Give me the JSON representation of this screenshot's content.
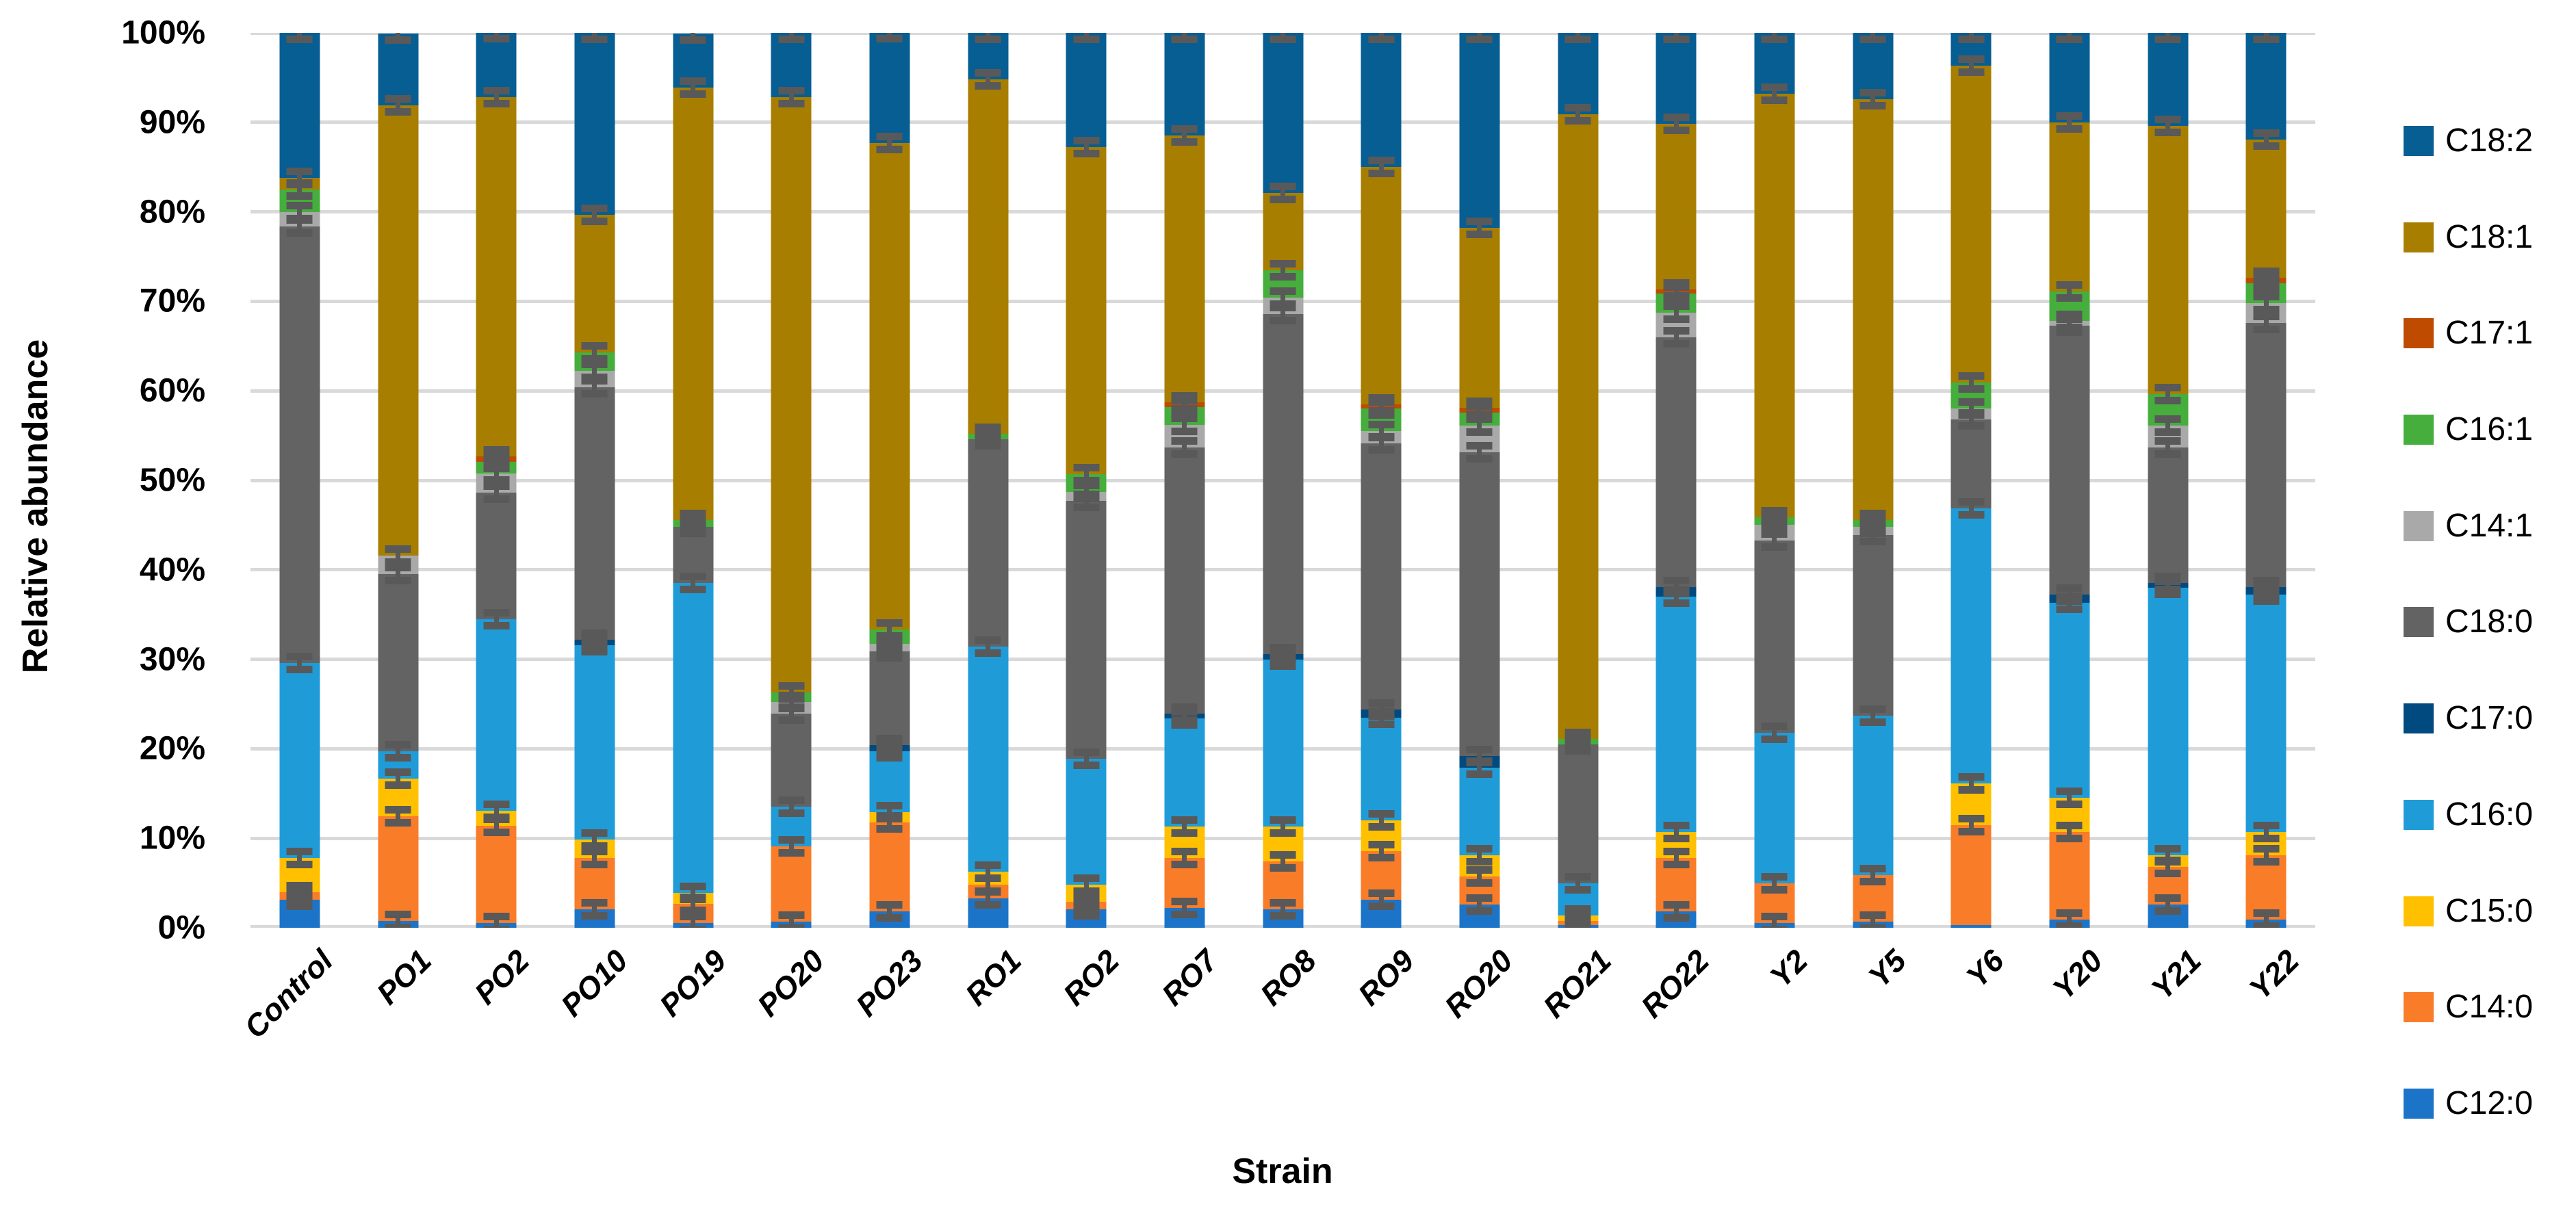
{
  "chart_data": {
    "type": "bar",
    "stacked": true,
    "orientation": "vertical",
    "title": "",
    "xlabel": "Strain",
    "ylabel": "Relative abundance",
    "ylim": [
      0,
      100
    ],
    "ytick_step": 10,
    "ytick_labels_top_to_bottom": [
      "100%",
      "90%",
      "80%",
      "70%",
      "60%",
      "50%",
      "40%",
      "30%",
      "20%",
      "10%",
      "0%"
    ],
    "grid": true,
    "gridline_color": "#D9D9D9",
    "legend_position": "right",
    "legend_order_top_to_bottom": [
      "C18:2",
      "C18:1",
      "C17:1",
      "C16:1",
      "C14:1",
      "C18:0",
      "C17:0",
      "C16:0",
      "C15:0",
      "C14:0",
      "C12:0"
    ],
    "categories": [
      "Control",
      "PO1",
      "PO2",
      "PO10",
      "PO19",
      "PO20",
      "PO23",
      "RO1",
      "RO2",
      "RO7",
      "RO8",
      "RO9",
      "RO20",
      "RO21",
      "RO22",
      "Y2",
      "Y5",
      "Y6",
      "Y20",
      "Y21",
      "Y22"
    ],
    "series_bottom_to_top": [
      {
        "name": "C12:0",
        "color": "#1C74C8",
        "values": [
          3.1,
          0.8,
          0.5,
          2.1,
          0.5,
          0.7,
          1.8,
          3.3,
          2.1,
          2.2,
          2.1,
          3.1,
          2.6,
          0.3,
          1.8,
          0.5,
          0.7,
          0.3,
          0.9,
          2.6,
          0.9
        ]
      },
      {
        "name": "C14:0",
        "color": "#F97C28",
        "values": [
          0.9,
          11.7,
          10.9,
          5.7,
          2.2,
          8.4,
          10.0,
          1.5,
          0.8,
          5.6,
          5.3,
          5.5,
          3.1,
          0.5,
          6.0,
          4.5,
          5.2,
          11.2,
          9.8,
          4.2,
          7.2
        ]
      },
      {
        "name": "C15:0",
        "color": "#FFC000",
        "values": [
          3.8,
          4.2,
          1.7,
          2.1,
          1.2,
          0,
          1.1,
          1.5,
          1.9,
          3.5,
          3.9,
          3.4,
          2.4,
          0.6,
          2.9,
          0,
          0,
          4.6,
          3.8,
          1.3,
          2.6
        ]
      },
      {
        "name": "C16:0",
        "color": "#1F9CD8",
        "values": [
          21.8,
          3.0,
          21.4,
          21.7,
          34.6,
          4.4,
          6.8,
          25.1,
          14.1,
          12.1,
          18.7,
          11.5,
          9.8,
          3.6,
          26.3,
          16.8,
          17.8,
          30.8,
          21.8,
          29.9,
          26.5
        ]
      },
      {
        "name": "C17:0",
        "color": "#004A7F",
        "values": [
          0,
          0,
          0,
          0.6,
          0,
          0,
          0.7,
          0,
          0,
          0.5,
          0.6,
          0.9,
          1.3,
          0,
          1.1,
          0,
          0,
          0,
          0.9,
          0.5,
          0.9
        ]
      },
      {
        "name": "C18:0",
        "color": "#636363",
        "values": [
          48.8,
          19.8,
          14.1,
          28.2,
          6.3,
          10.4,
          10.5,
          23.2,
          28.8,
          29.8,
          38.0,
          29.7,
          33.9,
          15.5,
          27.9,
          21.5,
          20.2,
          9.9,
          30.1,
          15.2,
          29.5
        ]
      },
      {
        "name": "C14:1",
        "color": "#A9A9A9",
        "values": [
          1.6,
          2.1,
          2.2,
          1.8,
          0,
          1.3,
          0.8,
          0,
          1.0,
          2.5,
          1.8,
          1.4,
          3.0,
          0,
          2.7,
          1.7,
          0.9,
          1.2,
          0.5,
          2.4,
          2.2
        ]
      },
      {
        "name": "C16:1",
        "color": "#45AE3C",
        "values": [
          2.5,
          0,
          1.3,
          2.1,
          0.8,
          1.1,
          1.6,
          0.6,
          2.0,
          2.0,
          3.1,
          2.5,
          1.5,
          0.6,
          2.2,
          0.9,
          0.8,
          2.9,
          3.3,
          3.5,
          2.2
        ]
      },
      {
        "name": "C17:1",
        "color": "#BE4B00",
        "values": [
          0,
          0,
          0.6,
          0,
          0,
          0,
          0,
          0,
          0,
          0.5,
          0,
          0.5,
          0.5,
          0,
          0.4,
          0,
          0,
          0,
          0,
          0,
          0.6
        ]
      },
      {
        "name": "C18:1",
        "color": "#A87E00",
        "values": [
          1.3,
          50.3,
          40.1,
          15.4,
          48.3,
          66.5,
          54.4,
          39.6,
          36.5,
          29.8,
          8.6,
          26.5,
          20.1,
          69.8,
          18.5,
          47.3,
          47.0,
          35.4,
          18.9,
          30.0,
          15.5
        ]
      },
      {
        "name": "C18:2",
        "color": "#075E93",
        "values": [
          16.2,
          8.0,
          7.3,
          20.3,
          6.0,
          7.2,
          12.4,
          5.2,
          12.8,
          11.5,
          17.9,
          15.0,
          21.8,
          9.1,
          10.2,
          6.8,
          7.4,
          3.7,
          10.0,
          10.4,
          11.9
        ]
      }
    ],
    "error_bars": {
      "shown": true,
      "color": "#595959",
      "approx_half_height_pct": 1.1,
      "min_segment_pct_for_whisker": 0.4
    }
  }
}
